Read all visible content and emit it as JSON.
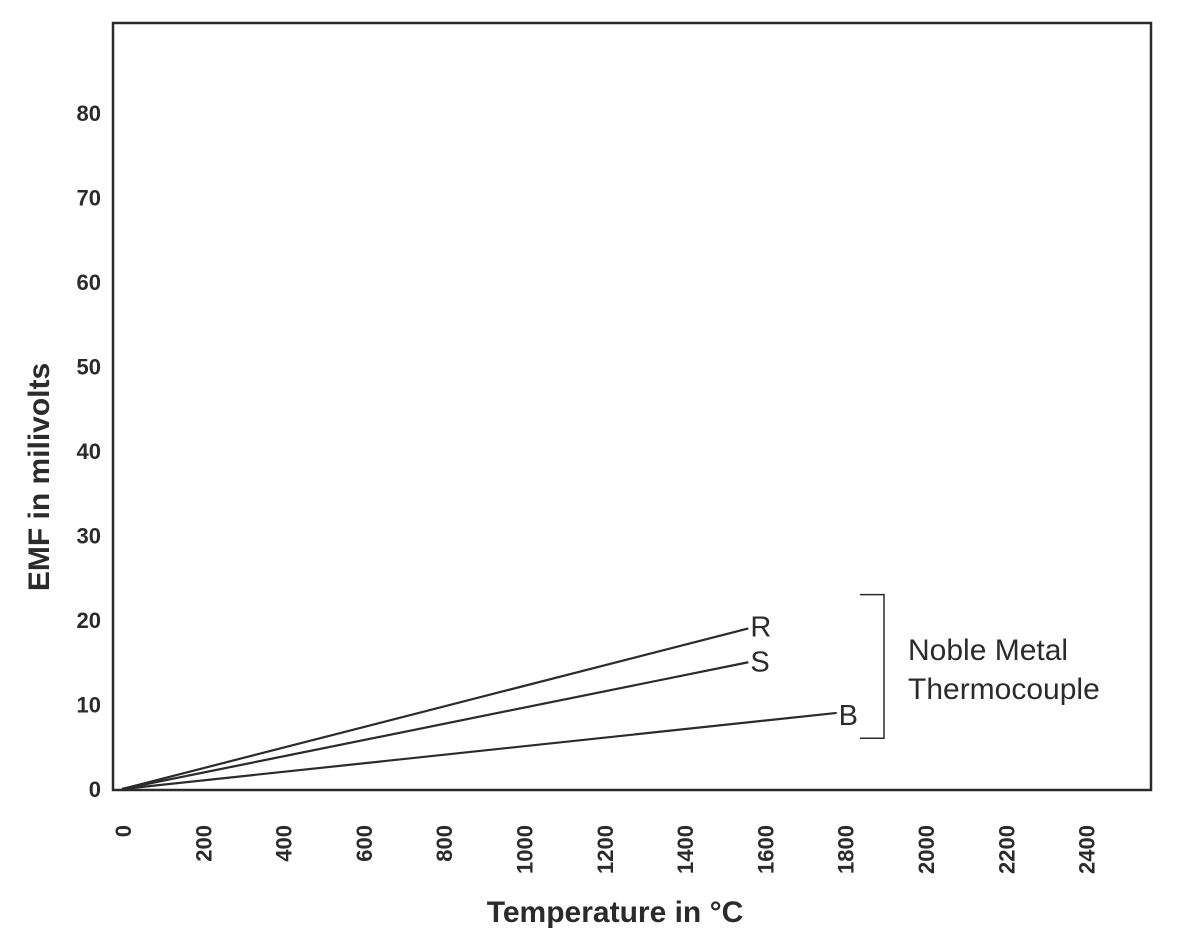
{
  "chart_data": {
    "type": "line",
    "title": "",
    "xlabel": "Temperature in °C",
    "ylabel": "EMF in milivolts",
    "xlim": [
      0,
      2550
    ],
    "ylim": [
      0,
      90
    ],
    "xticks": [
      0,
      200,
      400,
      600,
      800,
      1000,
      1200,
      1400,
      1600,
      1800,
      2000,
      2200,
      2400
    ],
    "xtick_labels": [
      "0",
      "200",
      "400",
      "600",
      "800",
      "1000",
      "1200",
      "1400",
      "1600",
      "1800",
      "2000",
      "2200",
      "2400"
    ],
    "yticks": [
      0,
      10,
      20,
      30,
      40,
      50,
      60,
      70,
      80
    ],
    "ytick_labels": [
      "0",
      "10",
      "20",
      "30",
      "40",
      "50",
      "60",
      "70",
      "80"
    ],
    "grid": false,
    "series": [
      {
        "name": "R",
        "x": [
          0,
          1560
        ],
        "y": [
          0,
          19
        ]
      },
      {
        "name": "S",
        "x": [
          0,
          1560
        ],
        "y": [
          0,
          15
        ]
      },
      {
        "name": "B",
        "x": [
          0,
          1780
        ],
        "y": [
          0,
          9
        ]
      }
    ],
    "annotations": [
      {
        "text_lines": [
          "Noble Metal",
          "Thermocouple"
        ],
        "groups": [
          "R",
          "S",
          "B"
        ],
        "y_span": [
          6,
          23
        ]
      }
    ]
  }
}
